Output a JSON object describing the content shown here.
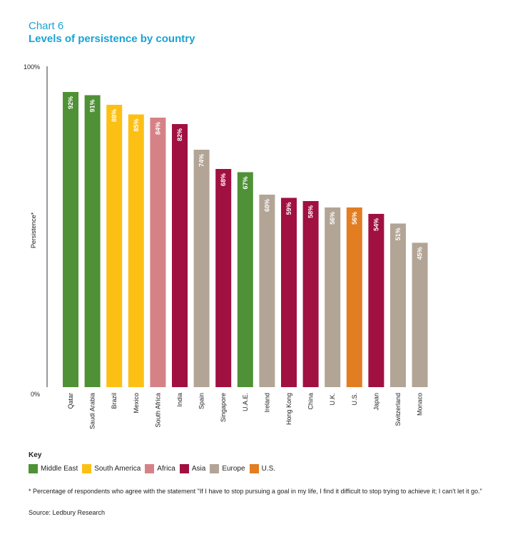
{
  "header": {
    "chart_label": "Chart 6",
    "title": "Levels of persistence by country"
  },
  "chart_data": {
    "type": "bar",
    "title": "Levels of persistence by country",
    "xlabel": "",
    "ylabel": "Persistence*",
    "ylim": [
      0,
      100
    ],
    "y_ticks": [
      "0%",
      "100%"
    ],
    "grid": false,
    "categories": [
      "Qatar",
      "Saudi Arabia",
      "Brazil",
      "Mexico",
      "South Africa",
      "India",
      "Spain",
      "Singapore",
      "U.A.E.",
      "Ireland",
      "Hong Kong",
      "China",
      "U.K.",
      "U.S.",
      "Japan",
      "Switzerland",
      "Monaco"
    ],
    "values": [
      92,
      91,
      88,
      85,
      84,
      82,
      74,
      68,
      67,
      60,
      59,
      58,
      56,
      56,
      54,
      51,
      45
    ],
    "value_labels": [
      "92%",
      "91%",
      "88%",
      "85%",
      "84%",
      "82%",
      "74%",
      "68%",
      "67%",
      "60%",
      "59%",
      "58%",
      "56%",
      "56%",
      "54%",
      "51%",
      "45%"
    ],
    "regions": [
      "Middle East",
      "Middle East",
      "South America",
      "South America",
      "Africa",
      "Asia",
      "Europe",
      "Asia",
      "Middle East",
      "Europe",
      "Asia",
      "Asia",
      "Europe",
      "U.S.",
      "Asia",
      "Europe",
      "Europe"
    ],
    "legend": [
      {
        "name": "Middle East",
        "color": "#4f9136"
      },
      {
        "name": "South America",
        "color": "#fcc015"
      },
      {
        "name": "Africa",
        "color": "#d58287"
      },
      {
        "name": "Asia",
        "color": "#a01040"
      },
      {
        "name": "Europe",
        "color": "#b2a596"
      },
      {
        "name": "U.S.",
        "color": "#e27d22"
      }
    ]
  },
  "key": {
    "title": "Key"
  },
  "footnote": "* Percentage of respondents who agree with the statement \"If I have to stop pursuing a goal in my life, I find it difficult to stop trying to achieve it; I can't let it go.\"",
  "source": "Source: Ledbury Research"
}
